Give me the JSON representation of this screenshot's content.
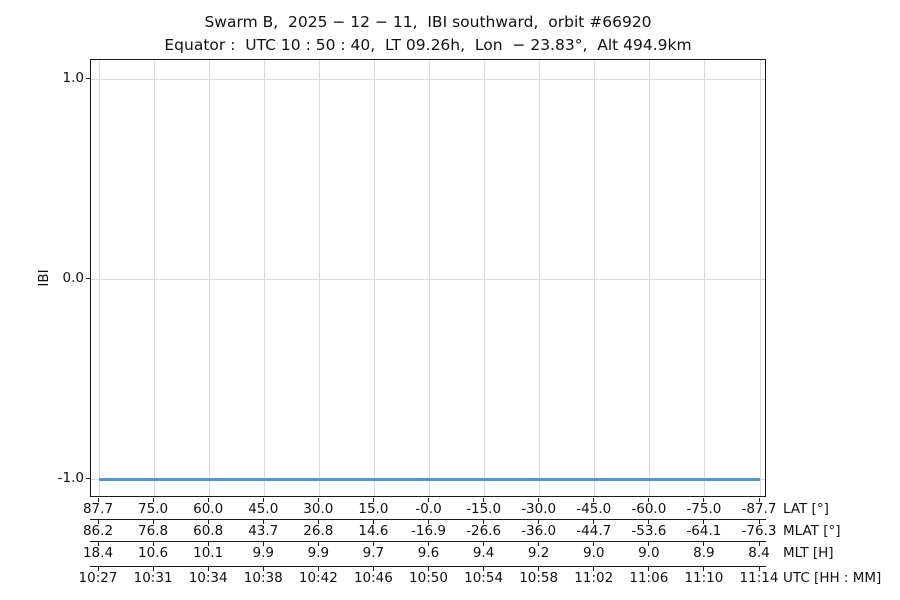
{
  "figure": {
    "title": "Swarm B,  2025 − 12 − 11,  IBI southward,  orbit #66920",
    "subtitle": "Equator :  UTC 10 : 50 : 40,  LT 09.26h,  Lon  − 23.83°,  Alt 494.9km"
  },
  "chart_data": {
    "type": "line",
    "title": "Swarm B, 2025-12-11, IBI southward, orbit #66920",
    "subtitle": "Equator: UTC 10:50:40, LT 09.26h, Lon -23.83°, Alt 494.9km",
    "ylabel": "IBI",
    "ylim": [
      -1.095,
      1.095
    ],
    "grid": true,
    "legend_position": "none",
    "yticks": [
      {
        "value": 1.0,
        "label": "1.0"
      },
      {
        "value": 0.0,
        "label": "0.0"
      },
      {
        "value": -1.0,
        "label": "-1.0"
      }
    ],
    "series": [
      {
        "name": "IBI",
        "color": "#4f96ca",
        "x_utc": [
          "10:27",
          "10:31",
          "10:34",
          "10:38",
          "10:42",
          "10:46",
          "10:50",
          "10:54",
          "10:58",
          "11:02",
          "11:06",
          "11:10",
          "11:14"
        ],
        "y": [
          -1.0,
          -1.0,
          -1.0,
          -1.0,
          -1.0,
          -1.0,
          -1.0,
          -1.0,
          -1.0,
          -1.0,
          -1.0,
          -1.0,
          -1.0
        ]
      }
    ],
    "x_axes": [
      {
        "label": "LAT [°]",
        "ticks": [
          "87.7",
          "75.0",
          "60.0",
          "45.0",
          "30.0",
          "15.0",
          "-0.0",
          "-15.0",
          "-30.0",
          "-45.0",
          "-60.0",
          "-75.0",
          "-87.7"
        ]
      },
      {
        "label": "MLAT [°]",
        "ticks": [
          "86.2",
          "76.8",
          "60.8",
          "43.7",
          "26.8",
          "14.6",
          "-16.9",
          "-26.6",
          "-36.0",
          "-44.7",
          "-53.6",
          "-64.1",
          "-76.3"
        ]
      },
      {
        "label": "MLT [H]",
        "ticks": [
          "18.4",
          "10.6",
          "10.1",
          "9.9",
          "9.9",
          "9.7",
          "9.6",
          "9.4",
          "9.2",
          "9.0",
          "9.0",
          "8.9",
          "8.4"
        ]
      },
      {
        "label": "UTC [HH : MM]",
        "ticks": [
          "10:27",
          "10:31",
          "10:34",
          "10:38",
          "10:42",
          "10:46",
          "10:50",
          "10:54",
          "10:58",
          "11:02",
          "11:06",
          "11:10",
          "11:14"
        ]
      }
    ]
  },
  "colors": {
    "line": "#4f96ca",
    "grid": "#d8d8d8",
    "spine": "#1a1a1a",
    "text": "#111111"
  }
}
